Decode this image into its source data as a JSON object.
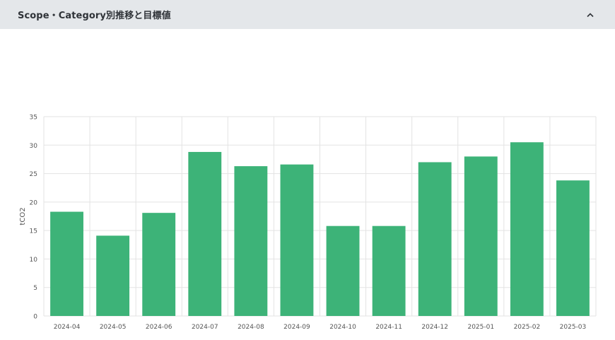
{
  "panel": {
    "title": "Scope・Category別推移と目標値",
    "collapse_icon": "chevron-up-icon"
  },
  "colors": {
    "bar": "#3db378",
    "grid": "#e3e3e3",
    "axis_text": "#555555",
    "header_bg": "#e4e7ea"
  },
  "chart_data": {
    "type": "bar",
    "categories": [
      "2024-04",
      "2024-05",
      "2024-06",
      "2024-07",
      "2024-08",
      "2024-09",
      "2024-10",
      "2024-11",
      "2024-12",
      "2025-01",
      "2025-02",
      "2025-03"
    ],
    "values": [
      18.3,
      14.1,
      18.1,
      28.8,
      26.3,
      26.6,
      15.8,
      15.8,
      27.0,
      28.0,
      30.5,
      23.8
    ],
    "ylabel": "tCO2",
    "ylim": [
      0,
      35
    ],
    "yticks": [
      0,
      5,
      10,
      15,
      20,
      25,
      30,
      35
    ],
    "grid": true
  }
}
